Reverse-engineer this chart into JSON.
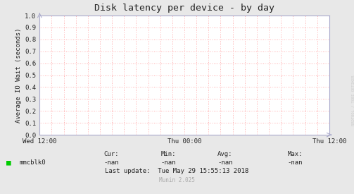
{
  "title": "Disk latency per device - by day",
  "ylabel": "Average IO Wait (seconds)",
  "background_color": "#e8e8e8",
  "plot_bg_color": "#ffffff",
  "grid_color": "#ff9999",
  "border_color": "#aaaacc",
  "xlim": [
    0,
    1
  ],
  "ylim": [
    0.0,
    1.0
  ],
  "yticks": [
    0.0,
    0.1,
    0.2,
    0.3,
    0.4,
    0.5,
    0.6,
    0.7,
    0.8,
    0.9,
    1.0
  ],
  "xtick_labels": [
    "Wed 12:00",
    "Thu 00:00",
    "Thu 12:00"
  ],
  "xtick_positions": [
    0.0,
    0.5,
    1.0
  ],
  "legend_label": "mmcblk0",
  "legend_color": "#00cc00",
  "cur_label": "Cur:",
  "cur_val": "-nan",
  "min_label": "Min:",
  "min_val": "-nan",
  "avg_label": "Avg:",
  "avg_val": "-nan",
  "max_label": "Max:",
  "max_val": "-nan",
  "last_update": "Last update:  Tue May 29 15:55:13 2018",
  "watermark": "Munin 2.025",
  "rrdtool_label": "RRDTOOL / TOBI OETIKER",
  "title_fontsize": 9.5,
  "axis_fontsize": 6.5,
  "legend_fontsize": 6.5,
  "annotation_fontsize": 5.5,
  "rrdtool_fontsize": 4.0
}
